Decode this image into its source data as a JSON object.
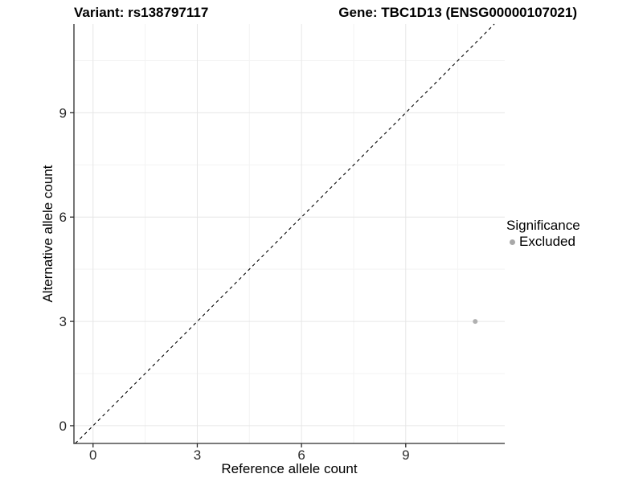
{
  "titles": {
    "variant": "Variant: rs138797117",
    "gene": "Gene: TBC1D13 (ENSG00000107021)"
  },
  "chart_data": {
    "type": "scatter",
    "xlabel": "Reference allele count",
    "ylabel": "Alternative allele count",
    "xlim": [
      -0.55,
      11.85
    ],
    "ylim": [
      -0.51,
      11.55
    ],
    "xticks": [
      0,
      3,
      6,
      9
    ],
    "yticks": [
      0,
      3,
      6,
      9
    ],
    "minor_xticks": [
      1.5,
      4.5,
      7.5,
      10.5
    ],
    "minor_yticks": [
      1.5,
      4.5,
      7.5,
      10.5
    ],
    "grid": true,
    "identity_line": {
      "style": "dashed",
      "slope": 1,
      "intercept": 0,
      "color": "#000000"
    },
    "series": [
      {
        "name": "Excluded",
        "color": "#b0b0b0",
        "point_radius": 3,
        "points": [
          {
            "x": 11,
            "y": 3
          }
        ]
      }
    ],
    "legend": {
      "position": "right",
      "title": "Significance",
      "items": [
        {
          "label": "Excluded",
          "color": "#a8a8a8"
        }
      ]
    },
    "colors": {
      "axis_line": "#2b2b2b",
      "tick_text": "#2b2b2b",
      "grid_major": "#e6e6e6",
      "grid_minor": "#f3f3f3"
    }
  }
}
